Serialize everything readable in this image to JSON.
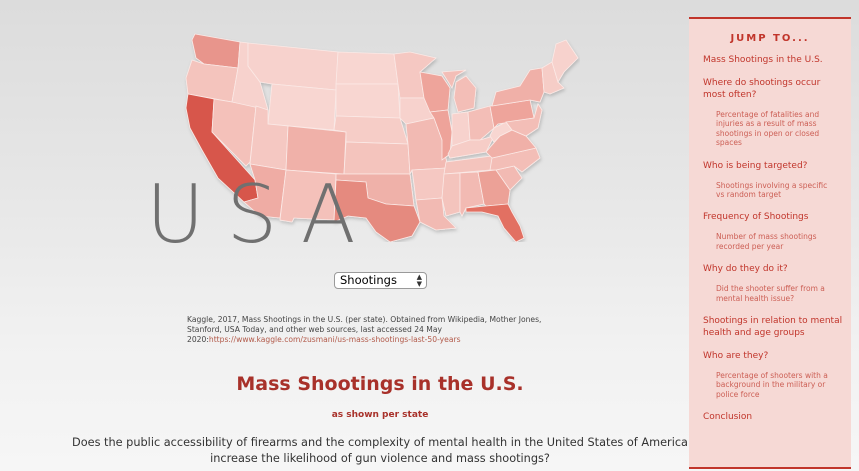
{
  "map": {
    "word": "USA",
    "states": [
      {
        "id": "WA",
        "fill": "#e8958c"
      },
      {
        "id": "OR",
        "fill": "#f4c4bd"
      },
      {
        "id": "CA",
        "fill": "#d7574b"
      },
      {
        "id": "NV",
        "fill": "#f4c1ba"
      },
      {
        "id": "ID",
        "fill": "#f7d2cd"
      },
      {
        "id": "MT",
        "fill": "#f7d2cd"
      },
      {
        "id": "WY",
        "fill": "#f8d6d1"
      },
      {
        "id": "UT",
        "fill": "#f5c8c2"
      },
      {
        "id": "AZ",
        "fill": "#ef aca4"
      },
      {
        "id": "CO",
        "fill": "#f0b1a9"
      },
      {
        "id": "NM",
        "fill": "#f4c1ba"
      },
      {
        "id": "ND",
        "fill": "#f8d6d1"
      },
      {
        "id": "SD",
        "fill": "#f8d6d1"
      },
      {
        "id": "NE",
        "fill": "#f6cdc7"
      },
      {
        "id": "KS",
        "fill": "#f4c4bd"
      },
      {
        "id": "OK",
        "fill": "#efb1a9"
      },
      {
        "id": "TX",
        "fill": "#e58a7f"
      },
      {
        "id": "MN",
        "fill": "#f5c8c2"
      },
      {
        "id": "IA",
        "fill": "#f7d2cd"
      },
      {
        "id": "MO",
        "fill": "#f2bab3"
      },
      {
        "id": "AR",
        "fill": "#f5c8c2"
      },
      {
        "id": "LA",
        "fill": "#f2bab3"
      },
      {
        "id": "WI",
        "fill": "#eea49b"
      },
      {
        "id": "IL",
        "fill": "#ee a39a"
      },
      {
        "id": "MI",
        "fill": "#f3beb7"
      },
      {
        "id": "IN",
        "fill": "#f7d2cd"
      },
      {
        "id": "OH",
        "fill": "#f3beb7"
      },
      {
        "id": "KY",
        "fill": "#f6cdc7"
      },
      {
        "id": "TN",
        "fill": "#f4c4bd"
      },
      {
        "id": "MS",
        "fill": "#f4c4bd"
      },
      {
        "id": "AL",
        "fill": "#f2bab3"
      },
      {
        "id": "GA",
        "fill": "#eca197"
      },
      {
        "id": "FL",
        "fill": "#e26f62"
      },
      {
        "id": "SC",
        "fill": "#f2bab3"
      },
      {
        "id": "NC",
        "fill": "#f3beb7"
      },
      {
        "id": "VA",
        "fill": "#f0b0a8"
      },
      {
        "id": "WV",
        "fill": "#f8d6d1"
      },
      {
        "id": "PA",
        "fill": "#eea49b"
      },
      {
        "id": "NY",
        "fill": "#f0b0a8"
      },
      {
        "id": "NE-states",
        "fill": "#f6cdc7"
      },
      {
        "id": "ME",
        "fill": "#f7d2cd"
      }
    ]
  },
  "selector": {
    "value": "Shootings"
  },
  "source": {
    "text": "Kaggle, 2017, Mass Shootings in the U.S. (per state). Obtained from Wikipedia, Mother Jones, Stanford, USA Today, and other web sources, last accessed 24 May 2020:",
    "link": "https://www.kaggle.com/zusmani/us-mass-shootings-last-50-years"
  },
  "main": {
    "title": "Mass Shootings in the U.S.",
    "subtitle": "as shown per state",
    "question": "Does the public accessibility of firearms and the complexity of mental health in the United States of America increase the likelihood of gun violence and mass shootings?"
  },
  "sidebar": {
    "title": "JUMP TO...",
    "items": [
      {
        "label": "Mass Shootings in the U.S.",
        "sub": ""
      },
      {
        "label": "Where do shootings occur most often?",
        "sub": "Percentage of fatalities and injuries as a result of mass shootings in open or closed spaces"
      },
      {
        "label": "Who is being targeted?",
        "sub": "Shootings involving a specific vs random target"
      },
      {
        "label": "Frequency of Shootings",
        "sub": "Number of mass shootings recorded per year"
      },
      {
        "label": "Why do they do it?",
        "sub": "Did the shooter suffer from a mental health issue?"
      },
      {
        "label": "Shootings in relation to mental health and age groups",
        "sub": ""
      },
      {
        "label": "Who are they?",
        "sub": "Percentage of shooters with a background in the military or police force"
      },
      {
        "label": "Conclusion",
        "sub": ""
      }
    ]
  }
}
